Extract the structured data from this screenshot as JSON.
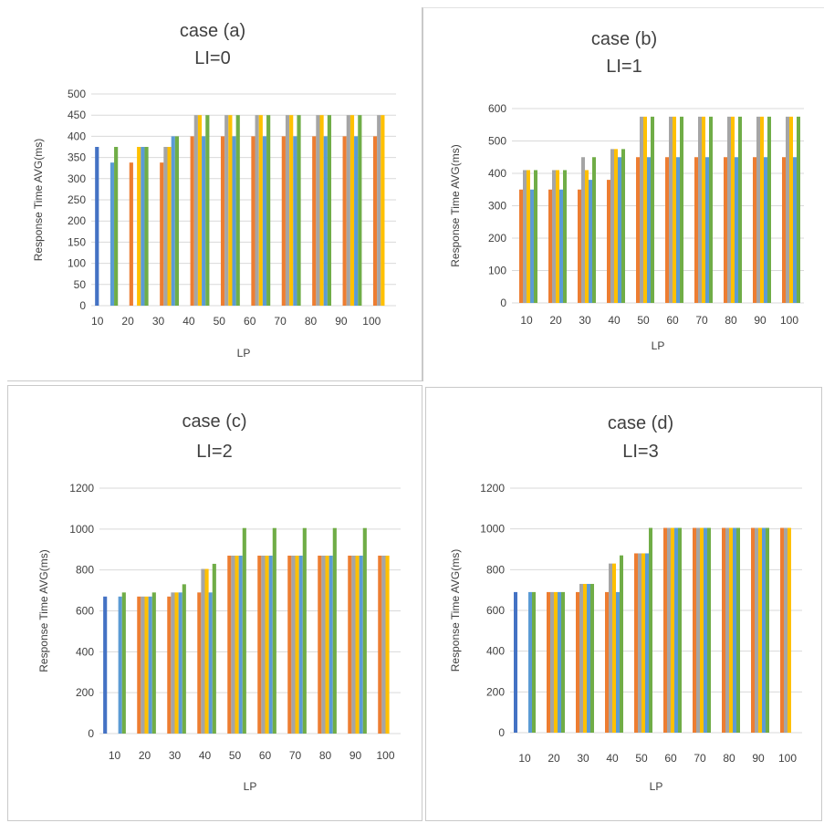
{
  "colors": {
    "series": [
      "#4472c4",
      "#ed7d31",
      "#a5a5a5",
      "#ffc000",
      "#5b9bd5",
      "#70ad47"
    ],
    "grid": "#d9d9d9",
    "text": "#404040"
  },
  "chart_data": [
    {
      "id": "a",
      "type": "bar",
      "title": "case (a)",
      "subtitle": "LI=0",
      "xlabel": "LP",
      "ylabel": "Response Time AVG(ms)",
      "categories": [
        "10",
        "20",
        "30",
        "40",
        "50",
        "60",
        "70",
        "80",
        "90",
        "100"
      ],
      "ylim": [
        0,
        500
      ],
      "yticks": [
        0,
        50,
        100,
        150,
        200,
        250,
        300,
        350,
        400,
        450,
        500
      ],
      "grid": true,
      "series": [
        {
          "values": [
            375,
            0,
            0,
            0,
            0,
            0,
            0,
            0,
            0,
            0
          ]
        },
        {
          "values": [
            0,
            338,
            338,
            400,
            400,
            400,
            400,
            400,
            400,
            400
          ]
        },
        {
          "values": [
            0,
            0,
            375,
            450,
            450,
            450,
            450,
            450,
            450,
            450
          ]
        },
        {
          "values": [
            0,
            375,
            375,
            450,
            450,
            450,
            450,
            450,
            450,
            450
          ]
        },
        {
          "values": [
            338,
            375,
            400,
            400,
            400,
            400,
            400,
            400,
            400,
            0
          ]
        },
        {
          "values": [
            375,
            375,
            400,
            450,
            450,
            450,
            450,
            450,
            450,
            0
          ]
        }
      ]
    },
    {
      "id": "b",
      "type": "bar",
      "title": "case (b)",
      "subtitle": "LI=1",
      "xlabel": "LP",
      "ylabel": "Response Time AVG(ms)",
      "categories": [
        "10",
        "20",
        "30",
        "40",
        "50",
        "60",
        "70",
        "80",
        "90",
        "100"
      ],
      "ylim": [
        0,
        600
      ],
      "yticks": [
        0,
        100,
        200,
        300,
        400,
        500,
        600
      ],
      "grid": true,
      "series": [
        {
          "values": [
            0,
            0,
            0,
            0,
            0,
            0,
            0,
            0,
            0,
            0
          ]
        },
        {
          "values": [
            350,
            350,
            350,
            380,
            450,
            450,
            450,
            450,
            450,
            450
          ]
        },
        {
          "values": [
            410,
            410,
            450,
            475,
            575,
            575,
            575,
            575,
            575,
            575
          ]
        },
        {
          "values": [
            410,
            410,
            410,
            475,
            575,
            575,
            575,
            575,
            575,
            575
          ]
        },
        {
          "values": [
            350,
            350,
            380,
            450,
            450,
            450,
            450,
            450,
            450,
            450
          ]
        },
        {
          "values": [
            410,
            410,
            450,
            475,
            575,
            575,
            575,
            575,
            575,
            575
          ]
        }
      ]
    },
    {
      "id": "c",
      "type": "bar",
      "title": "case (c)",
      "subtitle": "LI=2",
      "xlabel": "LP",
      "ylabel": "Response Time AVG(ms)",
      "categories": [
        "10",
        "20",
        "30",
        "40",
        "50",
        "60",
        "70",
        "80",
        "90",
        "100"
      ],
      "ylim": [
        0,
        1200
      ],
      "yticks": [
        0,
        200,
        400,
        600,
        800,
        1000,
        1200
      ],
      "grid": true,
      "series": [
        {
          "values": [
            670,
            0,
            0,
            0,
            0,
            0,
            0,
            0,
            0,
            0
          ]
        },
        {
          "values": [
            0,
            670,
            670,
            690,
            870,
            870,
            870,
            870,
            870,
            870
          ]
        },
        {
          "values": [
            0,
            670,
            690,
            805,
            870,
            870,
            870,
            870,
            870,
            870
          ]
        },
        {
          "values": [
            0,
            670,
            690,
            805,
            870,
            870,
            870,
            870,
            870,
            870
          ]
        },
        {
          "values": [
            670,
            670,
            690,
            690,
            870,
            870,
            870,
            870,
            870,
            0
          ]
        },
        {
          "values": [
            690,
            690,
            730,
            830,
            1005,
            1005,
            1005,
            1005,
            1005,
            0
          ]
        }
      ]
    },
    {
      "id": "d",
      "type": "bar",
      "title": "case (d)",
      "subtitle": "LI=3",
      "xlabel": "LP",
      "ylabel": "Response Time AVG(ms)",
      "categories": [
        "10",
        "20",
        "30",
        "40",
        "50",
        "60",
        "70",
        "80",
        "90",
        "100"
      ],
      "ylim": [
        0,
        1200
      ],
      "yticks": [
        0,
        200,
        400,
        600,
        800,
        1000,
        1200
      ],
      "grid": true,
      "series": [
        {
          "values": [
            690,
            0,
            0,
            0,
            0,
            0,
            0,
            0,
            0,
            0
          ]
        },
        {
          "values": [
            0,
            690,
            690,
            690,
            880,
            1005,
            1005,
            1005,
            1005,
            1005
          ]
        },
        {
          "values": [
            0,
            690,
            730,
            830,
            880,
            1005,
            1005,
            1005,
            1005,
            1005
          ]
        },
        {
          "values": [
            0,
            690,
            730,
            830,
            880,
            1005,
            1005,
            1005,
            1005,
            1005
          ]
        },
        {
          "values": [
            690,
            690,
            730,
            690,
            880,
            1005,
            1005,
            1005,
            1005,
            0
          ]
        },
        {
          "values": [
            690,
            690,
            730,
            870,
            1005,
            1005,
            1005,
            1005,
            1005,
            0
          ]
        }
      ]
    }
  ]
}
